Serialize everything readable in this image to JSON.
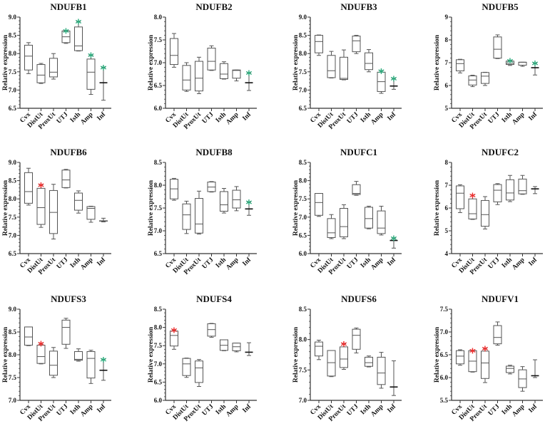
{
  "colors": {
    "green": "#2bab7c",
    "red": "#ee2a2a",
    "axis": "#333333",
    "box": "#555555"
  },
  "star_symbol": "*",
  "chart_data": [
    {
      "type": "box",
      "title": "NDUFB1",
      "ylabel": "Relative expression",
      "ylim": [
        6.5,
        9.0
      ],
      "ystep": 0.5,
      "categories": [
        "Cvx",
        "DistUt",
        "ProxUt",
        "UTJ",
        "Isth",
        "Amp",
        "Inf"
      ],
      "boxes": [
        [
          7.45,
          7.55,
          7.93,
          8.23,
          8.3
        ],
        [
          7.18,
          7.2,
          7.41,
          7.7,
          7.73
        ],
        [
          7.3,
          7.36,
          7.49,
          7.87,
          8.0
        ],
        [
          8.28,
          8.3,
          8.46,
          8.62,
          8.63
        ],
        [
          8.07,
          8.08,
          8.21,
          8.73,
          8.88
        ],
        [
          6.88,
          7.02,
          7.49,
          7.85,
          7.96
        ],
        [
          6.72,
          7.2,
          7.2,
          7.2,
          7.62
        ]
      ],
      "stars": [
        "",
        "",
        "",
        "green",
        "green",
        "green",
        "green"
      ]
    },
    {
      "type": "box",
      "title": "NDUFB2",
      "ylabel": "Relative expression",
      "ylim": [
        6.0,
        8.0
      ],
      "ystep": 0.5,
      "categories": [
        "Cvx",
        "DistUt",
        "ProxUt",
        "UTJ",
        "Isth",
        "Amp",
        "Inf"
      ],
      "boxes": [
        [
          6.9,
          6.96,
          7.16,
          7.53,
          7.64
        ],
        [
          6.37,
          6.4,
          6.62,
          6.94,
          7.0
        ],
        [
          6.32,
          6.38,
          6.66,
          7.03,
          7.12
        ],
        [
          6.83,
          6.84,
          7.03,
          7.32,
          7.37
        ],
        [
          6.64,
          6.65,
          6.75,
          6.98,
          7.02
        ],
        [
          6.6,
          6.66,
          6.83,
          6.84,
          6.84
        ],
        [
          6.39,
          6.56,
          6.56,
          6.56,
          6.78
        ]
      ],
      "stars": [
        "",
        "",
        "",
        "",
        "",
        "",
        "green"
      ]
    },
    {
      "type": "box",
      "title": "NDUFB3",
      "ylabel": "Relative expression",
      "ylim": [
        6.5,
        9.0
      ],
      "ystep": 0.5,
      "categories": [
        "Cvx",
        "DistUt",
        "ProxUt",
        "UTJ",
        "Isth",
        "Amp",
        "Inf"
      ],
      "boxes": [
        [
          7.95,
          8.02,
          8.33,
          8.5,
          8.51
        ],
        [
          7.33,
          7.34,
          7.53,
          7.95,
          8.06
        ],
        [
          7.28,
          7.29,
          7.32,
          7.9,
          8.1
        ],
        [
          8.0,
          8.05,
          8.35,
          8.48,
          8.5
        ],
        [
          7.5,
          7.56,
          7.73,
          8.02,
          8.11
        ],
        [
          6.91,
          6.96,
          7.23,
          7.49,
          7.53
        ],
        [
          7.02,
          7.11,
          7.11,
          7.11,
          7.32
        ]
      ],
      "stars": [
        "",
        "",
        "",
        "",
        "",
        "green",
        "green"
      ]
    },
    {
      "type": "box",
      "title": "NDUFB5",
      "ylabel": "Relative expression",
      "ylim": [
        5,
        9
      ],
      "ystep": 1,
      "categories": [
        "Cvx",
        "DistUt",
        "ProxUt",
        "UTJ",
        "Isth",
        "Amp",
        "Inf"
      ],
      "boxes": [
        [
          6.55,
          6.64,
          6.96,
          7.13,
          7.15
        ],
        [
          5.95,
          6.02,
          6.24,
          6.42,
          6.45
        ],
        [
          6.0,
          6.09,
          6.41,
          6.57,
          6.58
        ],
        [
          7.18,
          7.2,
          7.59,
          8.13,
          8.22
        ],
        [
          6.88,
          6.92,
          6.97,
          7.07,
          7.1
        ],
        [
          6.84,
          6.89,
          7.02,
          7.02,
          7.02
        ],
        [
          6.46,
          6.78,
          6.78,
          6.78,
          6.98
        ]
      ],
      "stars": [
        "",
        "",
        "",
        "",
        "green",
        "",
        "green"
      ]
    },
    {
      "type": "box",
      "title": "NDUFB6",
      "ylabel": "Relative expression",
      "ylim": [
        6.5,
        9.0
      ],
      "ystep": 0.5,
      "categories": [
        "Cvx",
        "DistUt",
        "ProxUt",
        "UTJ",
        "Isth",
        "Amp",
        "Inf"
      ],
      "boxes": [
        [
          7.83,
          7.88,
          8.2,
          8.72,
          8.84
        ],
        [
          7.22,
          7.3,
          7.76,
          8.29,
          8.38
        ],
        [
          6.9,
          7.05,
          7.63,
          8.23,
          8.4
        ],
        [
          8.3,
          8.31,
          8.52,
          8.79,
          8.81
        ],
        [
          7.61,
          7.69,
          7.96,
          8.16,
          8.22
        ],
        [
          7.36,
          7.44,
          7.74,
          7.79,
          7.8
        ],
        [
          7.37,
          7.39,
          7.39,
          7.4,
          7.47
        ]
      ],
      "stars": [
        "",
        "red",
        "",
        "",
        "",
        "",
        ""
      ]
    },
    {
      "type": "box",
      "title": "NDUFB8",
      "ylabel": "Relative expression",
      "ylim": [
        6.5,
        8.5
      ],
      "ystep": 0.5,
      "categories": [
        "Cvx",
        "DistUt",
        "ProxUt",
        "UTJ",
        "Isth",
        "Amp",
        "Inf"
      ],
      "boxes": [
        [
          7.67,
          7.7,
          7.92,
          8.13,
          8.15
        ],
        [
          6.94,
          7.03,
          7.35,
          7.59,
          7.65
        ],
        [
          6.93,
          6.95,
          7.15,
          7.71,
          7.87
        ],
        [
          7.85,
          7.86,
          7.96,
          8.07,
          8.08
        ],
        [
          7.39,
          7.43,
          7.57,
          7.86,
          7.93
        ],
        [
          7.44,
          7.5,
          7.68,
          7.89,
          7.97
        ],
        [
          7.34,
          7.48,
          7.48,
          7.48,
          7.63
        ]
      ],
      "stars": [
        "",
        "",
        "",
        "",
        "",
        "",
        "green"
      ]
    },
    {
      "type": "box",
      "title": "NDUFC1",
      "ylabel": "Relative expression",
      "ylim": [
        6.0,
        8.5
      ],
      "ystep": 0.5,
      "categories": [
        "Cvx",
        "DistUt",
        "ProxUt",
        "UTJ",
        "Isth",
        "Amp",
        "Inf"
      ],
      "boxes": [
        [
          7.02,
          7.05,
          7.4,
          7.65,
          7.65
        ],
        [
          6.41,
          6.44,
          6.57,
          6.96,
          7.07
        ],
        [
          6.41,
          6.46,
          6.74,
          7.24,
          7.34
        ],
        [
          7.6,
          7.62,
          7.65,
          7.89,
          7.98
        ],
        [
          6.68,
          6.7,
          6.96,
          7.27,
          7.3
        ],
        [
          6.51,
          6.55,
          6.7,
          7.17,
          7.3
        ],
        [
          6.15,
          6.36,
          6.36,
          6.36,
          6.43
        ]
      ],
      "stars": [
        "",
        "",
        "",
        "",
        "",
        "",
        "green"
      ]
    },
    {
      "type": "box",
      "title": "NDUFC2",
      "ylabel": "Relative expression",
      "ylim": [
        4,
        8
      ],
      "ystep": 1,
      "categories": [
        "Cvx",
        "DistUt",
        "ProxUt",
        "UTJ",
        "Isth",
        "Amp",
        "Inf"
      ],
      "boxes": [
        [
          5.8,
          5.97,
          6.65,
          6.97,
          7.02
        ],
        [
          5.5,
          5.52,
          5.75,
          6.4,
          6.57
        ],
        [
          5.08,
          5.2,
          5.71,
          6.33,
          6.5
        ],
        [
          6.15,
          6.27,
          6.78,
          7.03,
          7.07
        ],
        [
          6.28,
          6.35,
          6.66,
          7.24,
          7.43
        ],
        [
          6.6,
          6.62,
          6.76,
          7.27,
          7.43
        ],
        [
          6.63,
          6.84,
          6.84,
          6.84,
          6.94
        ]
      ],
      "stars": [
        "",
        "red",
        "",
        "",
        "",
        "",
        ""
      ]
    },
    {
      "type": "box",
      "title": "NDUFS3",
      "ylabel": "Relative expression",
      "ylim": [
        7.0,
        9.0
      ],
      "ystep": 0.5,
      "categories": [
        "Cvx",
        "DistUt",
        "ProxUt",
        "UTJ",
        "Isth",
        "Amp",
        "Inf"
      ],
      "boxes": [
        [
          8.2,
          8.21,
          8.39,
          8.61,
          8.61
        ],
        [
          7.8,
          7.81,
          7.96,
          8.21,
          8.25
        ],
        [
          7.5,
          7.55,
          7.77,
          8.08,
          8.16
        ],
        [
          8.14,
          8.23,
          8.6,
          8.76,
          8.8
        ],
        [
          7.86,
          7.88,
          7.9,
          8.07,
          8.13
        ],
        [
          7.37,
          7.49,
          7.92,
          8.07,
          8.1
        ],
        [
          7.44,
          7.66,
          7.66,
          7.66,
          7.9
        ]
      ],
      "stars": [
        "",
        "red",
        "",
        "",
        "",
        "",
        "green"
      ]
    },
    {
      "type": "box",
      "title": "NDUFS4",
      "ylabel": "Relative expression",
      "ylim": [
        6.0,
        8.5
      ],
      "ystep": 0.5,
      "categories": [
        "Cvx",
        "DistUt",
        "ProxUt",
        "UTJ",
        "Isth",
        "Amp",
        "Inf"
      ],
      "boxes": [
        [
          7.4,
          7.49,
          7.78,
          7.9,
          7.93
        ],
        [
          6.63,
          6.68,
          7.0,
          7.15,
          7.16
        ],
        [
          6.38,
          6.49,
          6.89,
          7.08,
          7.12
        ],
        [
          7.73,
          7.76,
          7.94,
          8.1,
          8.11
        ],
        [
          7.36,
          7.37,
          7.51,
          7.66,
          7.66
        ],
        [
          7.33,
          7.36,
          7.47,
          7.57,
          7.57
        ],
        [
          7.23,
          7.32,
          7.32,
          7.32,
          7.58
        ]
      ],
      "stars": [
        "red",
        "",
        "",
        "",
        "",
        "",
        ""
      ]
    },
    {
      "type": "box",
      "title": "NDUFS6",
      "ylabel": "Relative expression",
      "ylim": [
        7.0,
        8.5
      ],
      "ystep": 0.5,
      "categories": [
        "Cvx",
        "DistUt",
        "ProxUt",
        "UTJ",
        "Isth",
        "Amp",
        "Inf"
      ],
      "boxes": [
        [
          7.67,
          7.73,
          7.89,
          7.96,
          7.99
        ],
        [
          7.39,
          7.4,
          7.62,
          7.82,
          7.82
        ],
        [
          7.51,
          7.54,
          7.68,
          7.88,
          7.93
        ],
        [
          7.78,
          7.84,
          8.07,
          8.17,
          8.19
        ],
        [
          7.55,
          7.56,
          7.62,
          7.71,
          7.73
        ],
        [
          7.2,
          7.26,
          7.45,
          7.71,
          7.79
        ],
        [
          7.08,
          7.22,
          7.22,
          7.22,
          7.65
        ]
      ],
      "stars": [
        "",
        "",
        "red",
        "",
        "",
        "",
        ""
      ]
    },
    {
      "type": "box",
      "title": "NDUFV1",
      "ylabel": "Relative expression",
      "ylim": [
        5.5,
        7.5
      ],
      "ystep": 0.5,
      "categories": [
        "Cvx",
        "DistUt",
        "ProxUt",
        "UTJ",
        "Isth",
        "Amp",
        "Inf"
      ],
      "boxes": [
        [
          6.27,
          6.3,
          6.47,
          6.59,
          6.61
        ],
        [
          6.12,
          6.13,
          6.36,
          6.59,
          6.59
        ],
        [
          5.89,
          5.98,
          6.32,
          6.58,
          6.64
        ],
        [
          6.71,
          6.74,
          6.88,
          7.14,
          7.22
        ],
        [
          6.08,
          6.11,
          6.2,
          6.25,
          6.27
        ],
        [
          5.7,
          5.78,
          5.97,
          6.17,
          6.24
        ],
        [
          6.0,
          6.04,
          6.04,
          6.04,
          6.39
        ]
      ],
      "stars": [
        "",
        "red",
        "red",
        "",
        "",
        "",
        ""
      ]
    }
  ]
}
